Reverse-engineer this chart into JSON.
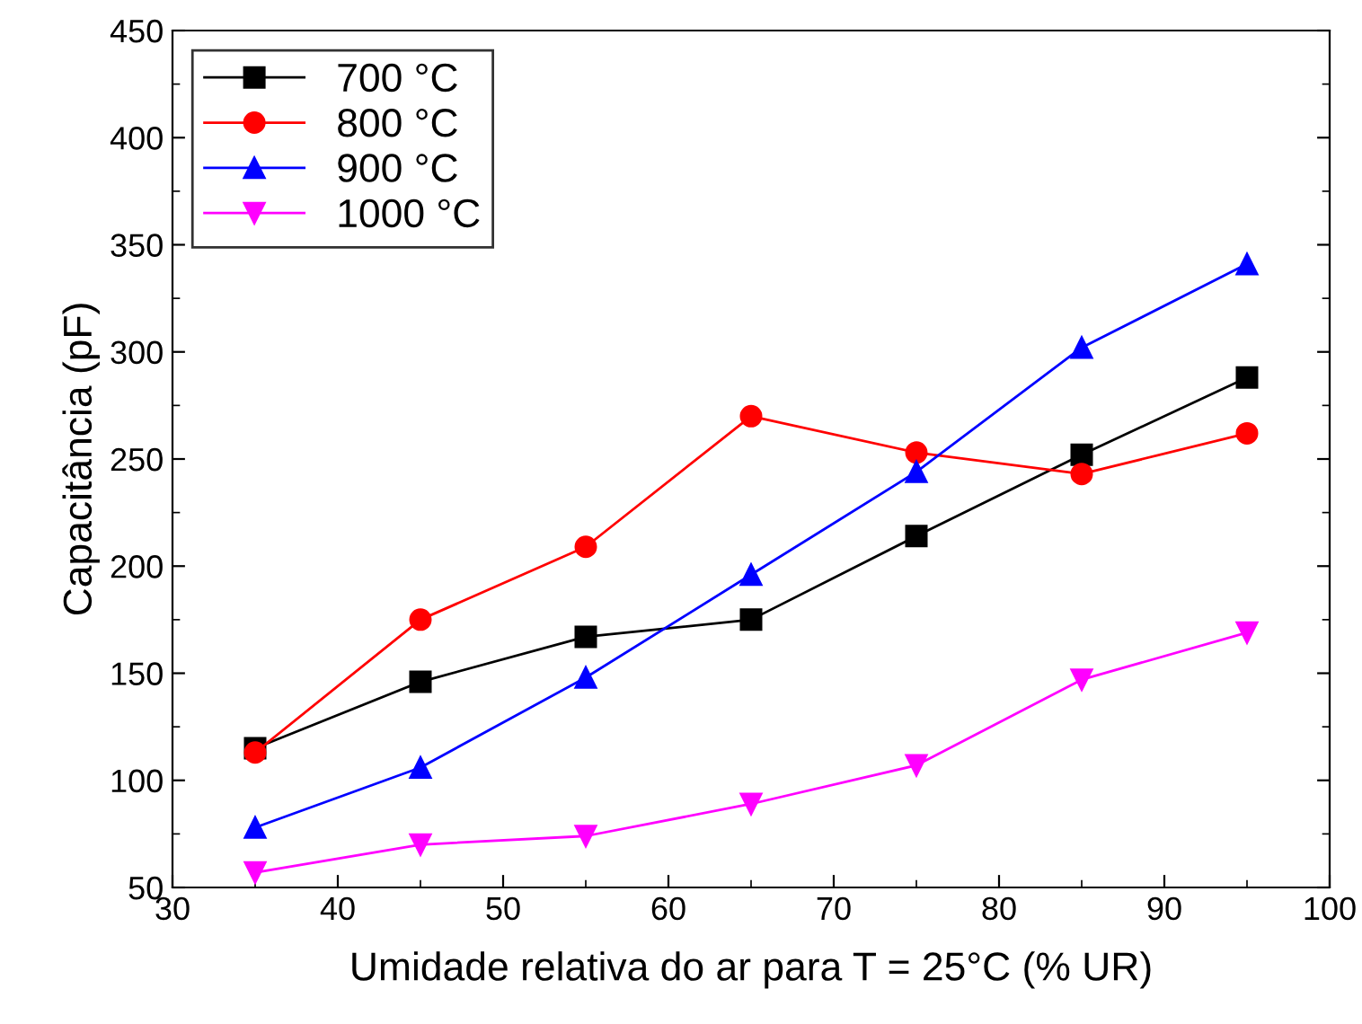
{
  "chart_data": {
    "type": "line",
    "xlabel": "Umidade relativa do ar para T = 25°C (% UR)",
    "ylabel": "Capacitância (pF)",
    "x": [
      35,
      45,
      55,
      65,
      75,
      85,
      95
    ],
    "xlim": [
      30,
      100
    ],
    "xticks": [
      30,
      40,
      50,
      60,
      70,
      80,
      90,
      100
    ],
    "ylim": [
      50,
      450
    ],
    "yticks": [
      50,
      100,
      150,
      200,
      250,
      300,
      350,
      400,
      450
    ],
    "grid": false,
    "legend": "top left",
    "line_style": "solid",
    "series": [
      {
        "name": "700 °C",
        "color": "#000000",
        "marker": "square",
        "values": [
          115,
          146,
          167,
          175,
          214,
          252,
          288
        ]
      },
      {
        "name": "800 °C",
        "color": "#ff0000",
        "marker": "circle",
        "values": [
          113,
          175,
          209,
          270,
          253,
          243,
          262
        ]
      },
      {
        "name": "900 °C",
        "color": "#0000ff",
        "marker": "triangle",
        "values": [
          78,
          106,
          148,
          196,
          244,
          302,
          341
        ]
      },
      {
        "name": "1000 °C",
        "color": "#ff00ff",
        "marker": "triangle_down",
        "values": [
          57,
          70,
          74,
          89,
          107,
          147,
          169
        ]
      }
    ]
  }
}
